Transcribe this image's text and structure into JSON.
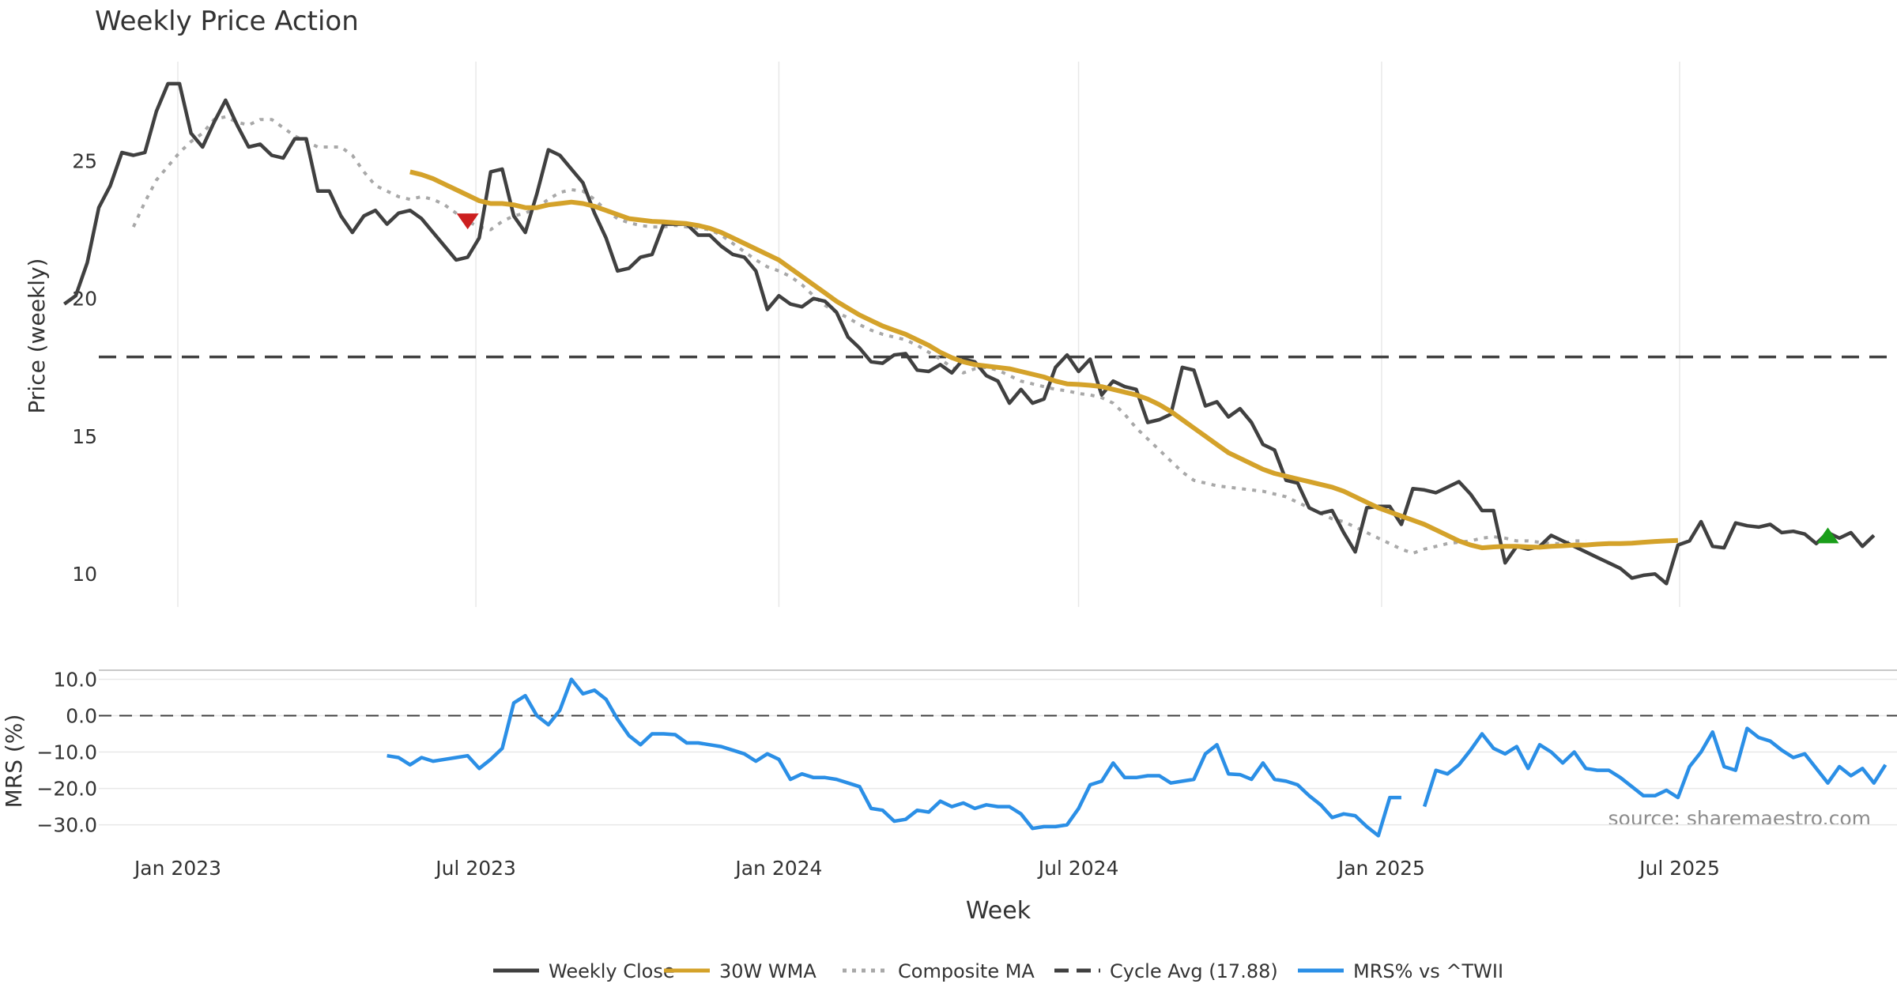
{
  "chart_data": [
    {
      "type": "line",
      "title": "Weekly Price Action",
      "xlabel": "",
      "ylabel": "Price (weekly)",
      "ylim": [
        8.8,
        28.6
      ],
      "yticks": [
        10,
        15,
        20,
        25
      ],
      "grid": "vertical",
      "markers": [
        {
          "name": "sell-signal-marker",
          "shape": "triangle-down",
          "color": "#cc1f1f",
          "date": "2023-06-26",
          "value": 22.8
        },
        {
          "name": "buy-signal-marker",
          "shape": "triangle-up",
          "color": "#1a9e1a",
          "date": "2025-09-29",
          "value": 11.4
        }
      ],
      "series": [
        {
          "name": "Weekly Close",
          "style": "solid",
          "color": "#404040",
          "width": 4.5,
          "start": "2022-10-24",
          "step_days": 7,
          "values": [
            19.8,
            20.1,
            21.3,
            23.3,
            24.1,
            25.3,
            25.2,
            25.3,
            26.8,
            27.8,
            27.8,
            26.0,
            25.5,
            26.4,
            27.2,
            26.3,
            25.5,
            25.6,
            25.2,
            25.1,
            25.8,
            25.8,
            23.9,
            23.9,
            23.0,
            22.4,
            23.0,
            23.2,
            22.7,
            23.1,
            23.2,
            22.9,
            22.4,
            21.9,
            21.4,
            21.5,
            22.2,
            24.6,
            24.7,
            23.0,
            22.4,
            23.8,
            25.4,
            25.2,
            24.7,
            24.2,
            23.1,
            22.2,
            21.0,
            21.1,
            21.5,
            21.6,
            22.7,
            22.7,
            22.7,
            22.3,
            22.3,
            21.9,
            21.6,
            21.5,
            21.0,
            19.6,
            20.1,
            19.8,
            19.7,
            20.0,
            19.9,
            19.5,
            18.6,
            18.2,
            17.7,
            17.65,
            17.95,
            18.0,
            17.4,
            17.35,
            17.6,
            17.3,
            17.8,
            17.7,
            17.2,
            17.0,
            16.2,
            16.7,
            16.2,
            16.35,
            17.5,
            17.95,
            17.35,
            17.8,
            16.5,
            17.0,
            16.8,
            16.7,
            15.5,
            15.6,
            15.8,
            17.5,
            17.4,
            16.1,
            16.25,
            15.7,
            16.0,
            15.5,
            14.7,
            14.5,
            13.4,
            13.3,
            12.4,
            12.2,
            12.3,
            11.5,
            10.8,
            12.4,
            12.45,
            12.45,
            11.8,
            13.1,
            13.05,
            12.95,
            13.15,
            13.35,
            12.9,
            12.3,
            12.3,
            10.4,
            11.0,
            10.9,
            11.0,
            11.4,
            11.2,
            11.0,
            10.8,
            10.6,
            10.4,
            10.2,
            9.85,
            9.95,
            10.0,
            9.65,
            11.05,
            11.2,
            11.9,
            11.0,
            10.95,
            11.85,
            11.75,
            11.7,
            11.8,
            11.5,
            11.55,
            11.45,
            11.1,
            11.5,
            11.3,
            11.5,
            11.0,
            11.4
          ]
        },
        {
          "name": "30W WMA",
          "style": "solid",
          "color": "#d4a22a",
          "width": 6,
          "start": "2023-05-22",
          "step_days": 7,
          "values": [
            24.6,
            24.5,
            24.35,
            24.15,
            23.95,
            23.75,
            23.55,
            23.45,
            23.45,
            23.4,
            23.3,
            23.3,
            23.4,
            23.45,
            23.5,
            23.45,
            23.35,
            23.2,
            23.05,
            22.9,
            22.85,
            22.8,
            22.78,
            22.75,
            22.72,
            22.65,
            22.55,
            22.4,
            22.2,
            22.0,
            21.8,
            21.6,
            21.4,
            21.1,
            20.8,
            20.5,
            20.2,
            19.9,
            19.65,
            19.4,
            19.2,
            19.0,
            18.85,
            18.7,
            18.5,
            18.3,
            18.05,
            17.85,
            17.7,
            17.6,
            17.55,
            17.5,
            17.45,
            17.35,
            17.25,
            17.15,
            17.0,
            16.9,
            16.88,
            16.85,
            16.8,
            16.7,
            16.6,
            16.5,
            16.35,
            16.15,
            15.9,
            15.6,
            15.3,
            15.0,
            14.7,
            14.4,
            14.2,
            14.0,
            13.8,
            13.65,
            13.55,
            13.45,
            13.35,
            13.25,
            13.15,
            13.0,
            12.8,
            12.6,
            12.4,
            12.25,
            12.1,
            11.95,
            11.8,
            11.6,
            11.4,
            11.2,
            11.05,
            10.95,
            10.98,
            11.0,
            11.0,
            10.98,
            10.97,
            11.0,
            11.02,
            11.05,
            11.05,
            11.08,
            11.1,
            11.1,
            11.12,
            11.15,
            11.18,
            11.2,
            11.22
          ]
        },
        {
          "name": "Composite MA",
          "style": "dotted",
          "color": "#a8a8a8",
          "width": 4,
          "start": "2022-12-05",
          "step_days": 7,
          "values": [
            22.6,
            23.5,
            24.3,
            24.8,
            25.3,
            25.7,
            26.0,
            26.5,
            26.6,
            26.4,
            26.3,
            26.5,
            26.5,
            26.2,
            25.9,
            25.7,
            25.5,
            25.5,
            25.5,
            25.2,
            24.6,
            24.1,
            23.9,
            23.7,
            23.6,
            23.7,
            23.6,
            23.4,
            23.1,
            22.8,
            22.6,
            22.5,
            22.8,
            23.0,
            23.1,
            23.3,
            23.6,
            23.85,
            23.95,
            23.9,
            23.6,
            23.2,
            22.9,
            22.75,
            22.65,
            22.6,
            22.6,
            22.65,
            22.6,
            22.55,
            22.5,
            22.3,
            22.0,
            21.7,
            21.4,
            21.15,
            21.0,
            20.8,
            20.5,
            20.1,
            19.75,
            19.5,
            19.3,
            19.05,
            18.85,
            18.7,
            18.6,
            18.5,
            18.3,
            18.05,
            17.8,
            17.5,
            17.3,
            17.45,
            17.5,
            17.4,
            17.2,
            17.0,
            16.9,
            16.8,
            16.7,
            16.65,
            16.55,
            16.5,
            16.4,
            16.2,
            15.8,
            15.3,
            14.9,
            14.5,
            14.1,
            13.7,
            13.4,
            13.3,
            13.2,
            13.15,
            13.1,
            13.05,
            13.0,
            12.9,
            12.8,
            12.6,
            12.4,
            12.2,
            12.0,
            11.9,
            11.7,
            11.5,
            11.3,
            11.1,
            10.9,
            10.75,
            10.9,
            11.0,
            11.1,
            11.15,
            11.2,
            11.3,
            11.35,
            11.3,
            11.2,
            11.2,
            11.15,
            11.1,
            11.1,
            11.2,
            11.2
          ]
        },
        {
          "name": "Cycle Avg (17.88)",
          "style": "dashed",
          "color": "#404040",
          "width": 3.5,
          "constant": 17.88
        }
      ]
    },
    {
      "type": "line",
      "title": "",
      "xlabel": "Week",
      "ylabel": "MRS (%)",
      "ylim": [
        -34,
        12.5
      ],
      "yticks": [
        10.0,
        0.0,
        -10.0,
        -20.0,
        -30.0
      ],
      "ytick_labels": [
        "10.0",
        "0.0",
        "−10.0",
        "−20.0",
        "−30.0"
      ],
      "xticks": [
        "2023-01-01",
        "2023-07-01",
        "2024-01-01",
        "2024-07-01",
        "2025-01-01",
        "2025-07-01"
      ],
      "xtick_labels": [
        "Jan 2023",
        "Jul 2023",
        "Jan 2024",
        "Jul 2024",
        "Jan 2025",
        "Jul 2025"
      ],
      "reference_line": {
        "value": 0,
        "style": "dashed",
        "color": "#404040"
      },
      "grid": "horizontal",
      "annotation": "source: sharemaestro.com",
      "series": [
        {
          "name": "MRS% vs ^TWII",
          "style": "solid",
          "color": "#2b8fe6",
          "width": 4.5,
          "segments": [
            {
              "start": "2023-05-08",
              "step_days": 7,
              "values": [
                -11,
                -11.5,
                -13.5,
                -11.5,
                -12.5,
                -12,
                -11.5,
                -11,
                -14.5,
                -12,
                -9,
                3.5,
                5.5,
                0,
                -2.5,
                1.5,
                10,
                6,
                7,
                4.5,
                -1,
                -5.5,
                -8,
                -5,
                -5,
                -5.2,
                -7.5,
                -7.5,
                -8,
                -8.5,
                -9.5,
                -10.5,
                -12.5,
                -10.5,
                -12,
                -17.5,
                -16,
                -17,
                -17,
                -17.5,
                -18.5,
                -19.5,
                -25.5,
                -26,
                -29,
                -28.5,
                -26,
                -26.5,
                -23.5,
                -25,
                -24,
                -25.5,
                -24.5,
                -25,
                -25,
                -27,
                -31,
                -30.5,
                -30.5,
                -30,
                -25.5,
                -19,
                -18,
                -13,
                -17,
                -17,
                -16.5,
                -16.5,
                -18.5,
                -18,
                -17.5,
                -10.5,
                -8,
                -16,
                -16.2,
                -17.5,
                -13,
                -17.5,
                -18,
                -19,
                -22,
                -24.5,
                -28,
                -27,
                -27.5,
                -30.5,
                -33,
                -22.5,
                -22.5
              ]
            },
            {
              "start": "2025-01-27",
              "step_days": 7,
              "values": [
                -25,
                -15,
                -16,
                -13.5,
                -9.5,
                -5,
                -9,
                -10.5,
                -8.5,
                -14.5,
                -8,
                -10,
                -13,
                -10,
                -14.5,
                -15,
                -15,
                -17,
                -19.5,
                -22,
                -22,
                -20.5,
                -22.5,
                -14,
                -10,
                -4.5,
                -14,
                -15,
                -3.5,
                -6,
                -7,
                -9.5,
                -11.5,
                -10.5,
                -14.5,
                -18.5,
                -14,
                -16.5,
                -14.5,
                -18.5,
                -13.5
              ]
            }
          ]
        }
      ]
    }
  ],
  "legend": {
    "placement": "bottom-center",
    "items": [
      {
        "label": "Weekly Close",
        "color": "#404040",
        "style": "solid"
      },
      {
        "label": "30W WMA",
        "color": "#d4a22a",
        "style": "solid"
      },
      {
        "label": "Composite MA",
        "color": "#a8a8a8",
        "style": "dotted"
      },
      {
        "label": "Cycle Avg (17.88)",
        "color": "#404040",
        "style": "dashed"
      },
      {
        "label": "MRS% vs ^TWII",
        "color": "#2b8fe6",
        "style": "solid"
      }
    ]
  },
  "colors": {
    "axis_text": "#333333",
    "grid": "#e8e8e8",
    "watermark": "#8c8c8c"
  }
}
